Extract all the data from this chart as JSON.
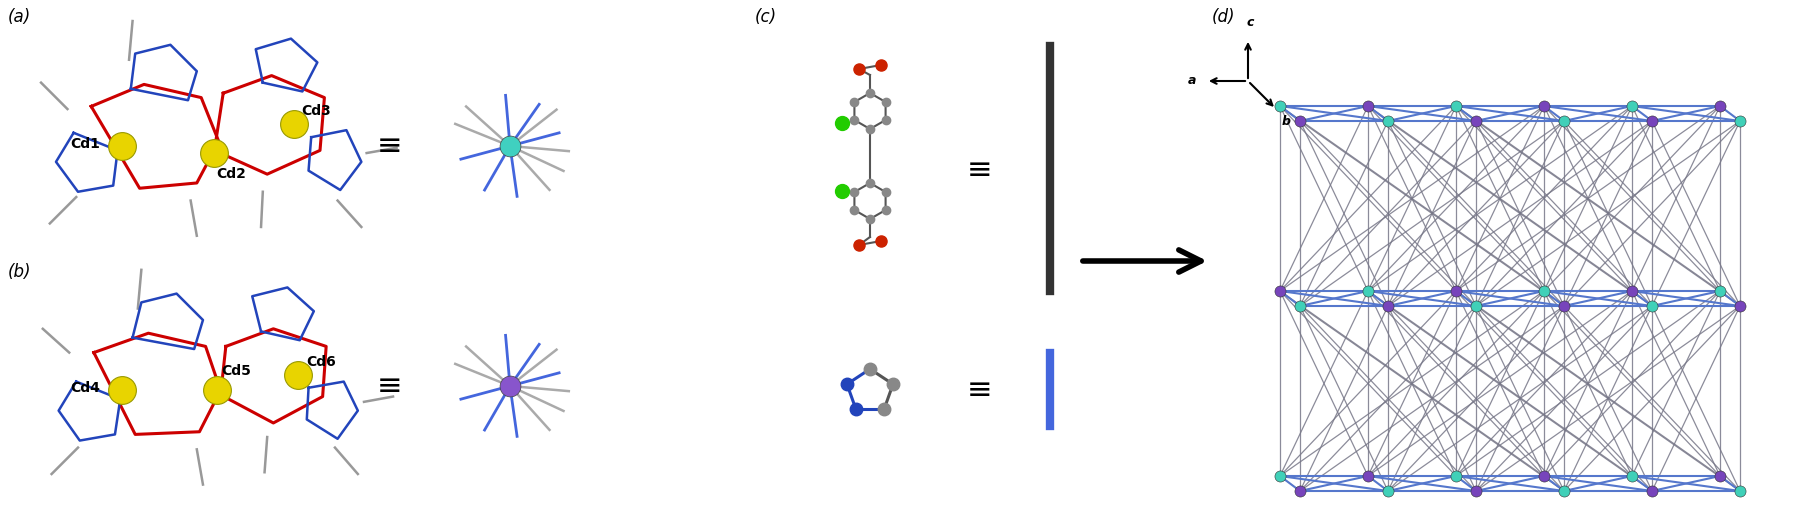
{
  "panel_a_label": "(a)",
  "panel_b_label": "(b)",
  "panel_c_label": "(c)",
  "panel_d_label": "(d)",
  "cd_labels_a": [
    "Cd1",
    "Cd2",
    "Cd3"
  ],
  "cd_labels_b": [
    "Cd4",
    "Cd5",
    "Cd6"
  ],
  "cd_color": "#e8d400",
  "cyan_node_color": "#40D0C0",
  "purple_node_color": "#8855CC",
  "blue_line_color": "#4466DD",
  "red_bond_color": "#CC0000",
  "blue_bond_color": "#2244BB",
  "network_blue": "#5577CC",
  "network_gray": "#777788",
  "node_cyan": "#40D0B8",
  "node_purple": "#7744BB",
  "bg_color": "#FFFFFF",
  "equiv_fontsize": 20,
  "label_fontsize": 11
}
